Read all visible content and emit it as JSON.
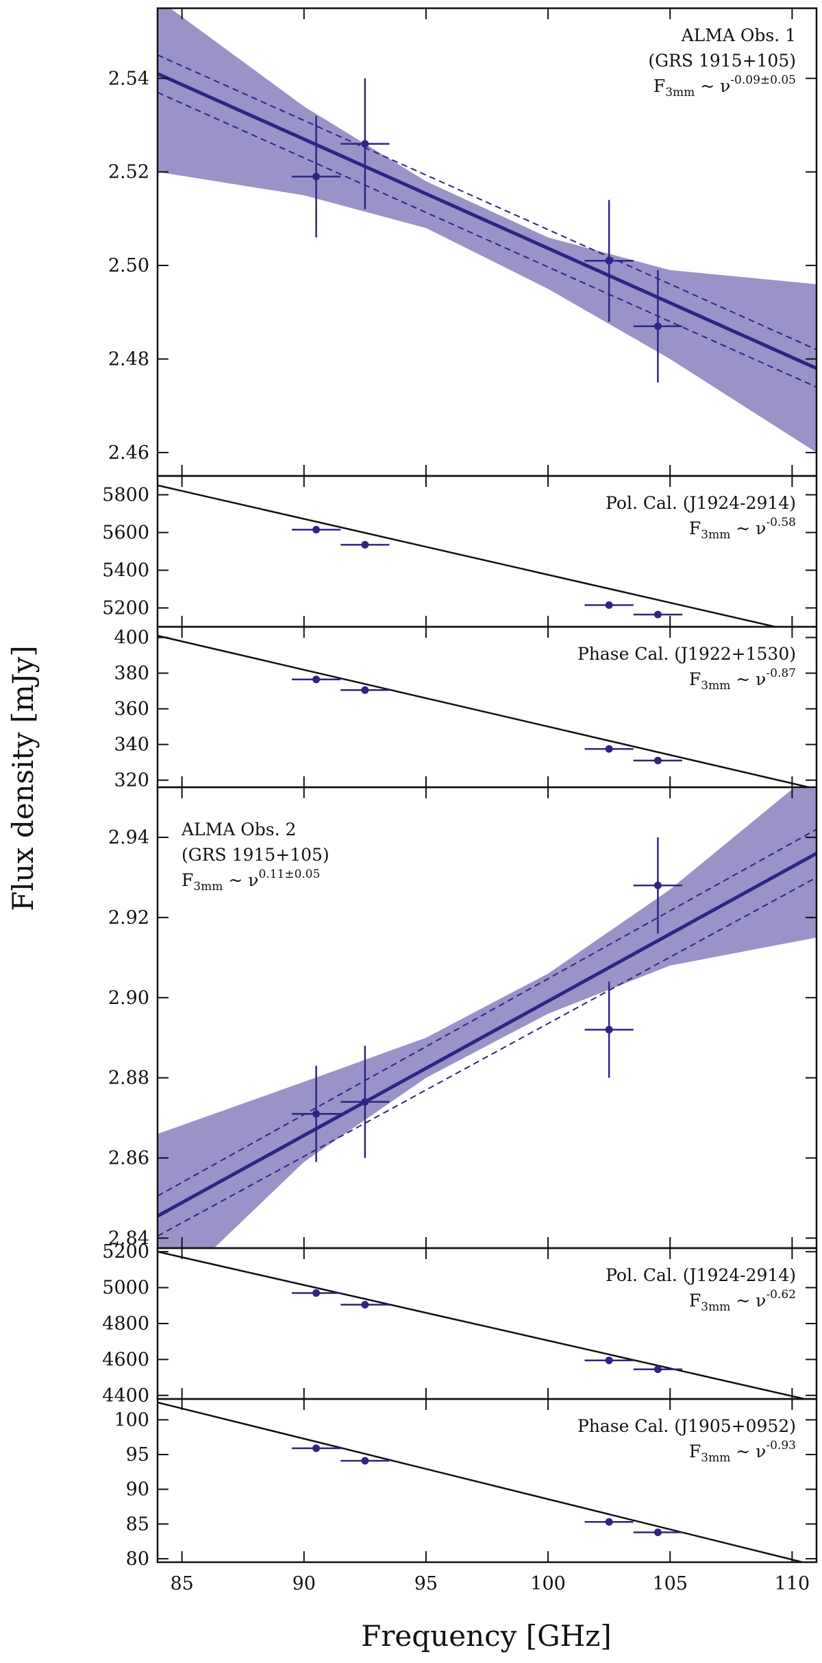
{
  "colors": {
    "accent": "#2e2483",
    "band": "#9993c8",
    "calibrator": "#111111",
    "axes": "#111111",
    "background": "#ffffff"
  },
  "xlabel": "Frequency [GHz]",
  "ylabel": "Flux density [mJy]",
  "chart_data": [
    {
      "type": "scatter",
      "title": "",
      "annotation": {
        "lines": [
          "ALMA Obs. 1",
          "(GRS 1915+105)"
        ],
        "base": "F",
        "sub": "3mm",
        "mid": " ~ ν",
        "sup": "-0.09±0.05"
      },
      "xlim": [
        84,
        111
      ],
      "xticks": [
        85,
        90,
        95,
        100,
        105,
        110
      ],
      "ylim": [
        2.455,
        2.555
      ],
      "yticks": [
        "2.46",
        "2.48",
        "2.50",
        "2.52",
        "2.54"
      ],
      "points": [
        {
          "x": 90.5,
          "y": 2.519,
          "xerr": 1.0,
          "yerr": 0.013
        },
        {
          "x": 92.5,
          "y": 2.526,
          "xerr": 1.0,
          "yerr": 0.014
        },
        {
          "x": 102.5,
          "y": 2.501,
          "xerr": 1.0,
          "yerr": 0.013
        },
        {
          "x": 104.5,
          "y": 2.487,
          "xerr": 1.0,
          "yerr": 0.012
        }
      ],
      "fit": {
        "x": [
          84,
          111
        ],
        "y": [
          2.541,
          2.478
        ]
      },
      "fit_confidence": {
        "x": [
          84,
          111
        ],
        "lower": [
          2.537,
          2.474
        ],
        "upper": [
          2.545,
          2.482
        ]
      },
      "band": {
        "x": [
          84,
          90,
          95,
          100,
          105,
          111
        ],
        "upper": [
          2.557,
          2.534,
          2.518,
          2.506,
          2.499,
          2.496
        ],
        "lower": [
          2.52,
          2.515,
          2.508,
          2.495,
          2.48,
          2.46
        ]
      }
    },
    {
      "type": "scatter",
      "title": "",
      "annotation": {
        "lines": [
          "Pol. Cal. (J1924-2914)"
        ],
        "base": "F",
        "sub": "3mm",
        "mid": " ~ ν",
        "sup": "-0.58"
      },
      "xlim": [
        84,
        111
      ],
      "xticks": [
        85,
        90,
        95,
        100,
        105,
        110
      ],
      "ylim": [
        5100,
        5900
      ],
      "yticks": [
        "5200",
        "5400",
        "5600",
        "5800"
      ],
      "points": [
        {
          "x": 90.5,
          "y": 5615,
          "xerr": 1.0,
          "yerr": 6
        },
        {
          "x": 92.5,
          "y": 5535,
          "xerr": 1.0,
          "yerr": 6
        },
        {
          "x": 102.5,
          "y": 5215,
          "xerr": 1.0,
          "yerr": 6
        },
        {
          "x": 104.5,
          "y": 5165,
          "xerr": 1.0,
          "yerr": 6
        }
      ],
      "fit": {
        "x": [
          84,
          111
        ],
        "y": [
          5850,
          5050
        ]
      }
    },
    {
      "type": "scatter",
      "title": "",
      "annotation": {
        "lines": [
          "Phase Cal. (J1922+1530)"
        ],
        "base": "F",
        "sub": "3mm",
        "mid": " ~ ν",
        "sup": "-0.87"
      },
      "xlim": [
        84,
        111
      ],
      "xticks": [
        85,
        90,
        95,
        100,
        105,
        110
      ],
      "ylim": [
        316,
        406
      ],
      "yticks": [
        "320",
        "340",
        "360",
        "380",
        "400"
      ],
      "points": [
        {
          "x": 90.5,
          "y": 376.5,
          "xerr": 1.0,
          "yerr": 1
        },
        {
          "x": 92.5,
          "y": 370.5,
          "xerr": 1.0,
          "yerr": 1
        },
        {
          "x": 102.5,
          "y": 337.5,
          "xerr": 1.0,
          "yerr": 1
        },
        {
          "x": 104.5,
          "y": 331.0,
          "xerr": 1.0,
          "yerr": 1
        }
      ],
      "fit": {
        "x": [
          84,
          111
        ],
        "y": [
          401,
          315
        ]
      }
    },
    {
      "type": "scatter",
      "title": "",
      "annotation": {
        "lines": [
          "ALMA Obs. 2",
          "(GRS 1915+105)"
        ],
        "base": "F",
        "sub": "3mm",
        "mid": " ~ ν",
        "sup": "0.11±0.05"
      },
      "xlim": [
        84,
        111
      ],
      "xticks": [
        85,
        90,
        95,
        100,
        105,
        110
      ],
      "ylim": [
        2.8375,
        2.9525
      ],
      "yticks": [
        "2.84",
        "2.86",
        "2.88",
        "2.90",
        "2.92",
        "2.94"
      ],
      "points": [
        {
          "x": 90.5,
          "y": 2.871,
          "xerr": 1.0,
          "yerr": 0.012
        },
        {
          "x": 92.5,
          "y": 2.874,
          "xerr": 1.0,
          "yerr": 0.014
        },
        {
          "x": 102.5,
          "y": 2.892,
          "xerr": 1.0,
          "yerr": 0.012
        },
        {
          "x": 104.5,
          "y": 2.928,
          "xerr": 1.0,
          "yerr": 0.012
        }
      ],
      "fit": {
        "x": [
          84,
          111
        ],
        "y": [
          2.8455,
          2.936
        ]
      },
      "fit_confidence": {
        "x": [
          84,
          111
        ],
        "lower": [
          2.8405,
          2.93
        ],
        "upper": [
          2.8505,
          2.942
        ]
      },
      "band": {
        "x": [
          84,
          90,
          95,
          100,
          105,
          111
        ],
        "upper": [
          2.866,
          2.879,
          2.89,
          2.906,
          2.927,
          2.957
        ],
        "lower": [
          2.824,
          2.859,
          2.88,
          2.896,
          2.908,
          2.915
        ]
      }
    },
    {
      "type": "scatter",
      "title": "",
      "annotation": {
        "lines": [
          "Pol. Cal. (J1924-2914)"
        ],
        "base": "F",
        "sub": "3mm",
        "mid": " ~ ν",
        "sup": "-0.62"
      },
      "xlim": [
        84,
        111
      ],
      "xticks": [
        85,
        90,
        95,
        100,
        105,
        110
      ],
      "ylim": [
        4380,
        5220
      ],
      "yticks": [
        "4400",
        "4600",
        "4800",
        "5000",
        "5200"
      ],
      "points": [
        {
          "x": 90.5,
          "y": 4970,
          "xerr": 1.0,
          "yerr": 6
        },
        {
          "x": 92.5,
          "y": 4905,
          "xerr": 1.0,
          "yerr": 6
        },
        {
          "x": 102.5,
          "y": 4595,
          "xerr": 1.0,
          "yerr": 6
        },
        {
          "x": 104.5,
          "y": 4545,
          "xerr": 1.0,
          "yerr": 6
        }
      ],
      "fit": {
        "x": [
          84,
          111
        ],
        "y": [
          5200,
          4365
        ]
      }
    },
    {
      "type": "scatter",
      "title": "",
      "annotation": {
        "lines": [
          "Phase Cal. (J1905+0952)"
        ],
        "base": "F",
        "sub": "3mm",
        "mid": " ~ ν",
        "sup": "-0.93"
      },
      "xlim": [
        84,
        111
      ],
      "xticks": [
        85,
        90,
        95,
        100,
        105,
        110
      ],
      "ylim": [
        79.5,
        103
      ],
      "yticks": [
        "80",
        "85",
        "90",
        "95",
        "100"
      ],
      "points": [
        {
          "x": 90.5,
          "y": 95.9,
          "xerr": 1.0,
          "yerr": 0.3
        },
        {
          "x": 92.5,
          "y": 94.1,
          "xerr": 1.0,
          "yerr": 0.3
        },
        {
          "x": 102.5,
          "y": 85.3,
          "xerr": 1.0,
          "yerr": 0.3
        },
        {
          "x": 104.5,
          "y": 83.8,
          "xerr": 1.0,
          "yerr": 0.3
        }
      ],
      "fit": {
        "x": [
          84,
          111
        ],
        "y": [
          102.5,
          79.0
        ]
      }
    }
  ]
}
